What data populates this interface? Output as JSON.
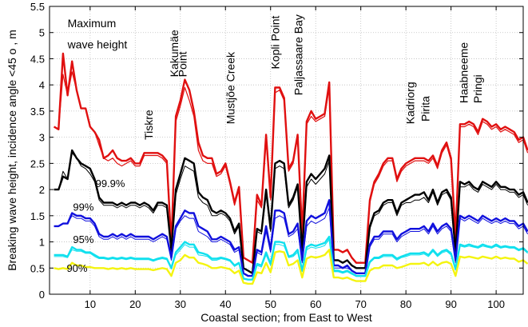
{
  "chart_data": {
    "type": "line",
    "title": "",
    "xlabel": "Coastal section; from East to West",
    "ylabel": "Breaking wave height, incidence angle <45 o , m",
    "xlim": [
      1,
      106
    ],
    "ylim": [
      0,
      5.5
    ],
    "xticks": [
      10,
      20,
      30,
      40,
      50,
      60,
      70,
      80,
      90,
      100
    ],
    "yticks": [
      0,
      0.5,
      1,
      1.5,
      2,
      2.5,
      3,
      3.5,
      4,
      4.5,
      5,
      5.5
    ],
    "ytick_labels": [
      "0",
      "0.5",
      "1",
      "1.5",
      "2",
      "2.5",
      "3",
      "3.5",
      "4",
      "4.5",
      "5",
      "5.5"
    ],
    "grid": true,
    "annotations": [
      {
        "text": "Maximum",
        "x": 5,
        "y": 5.1,
        "rotate": false
      },
      {
        "text": "wave height",
        "x": 5,
        "y": 4.7,
        "rotate": false
      },
      {
        "text": "Tiskre",
        "x": 23.8,
        "y": 2.95,
        "rotate": true
      },
      {
        "text": "Kakumäe",
        "x": 29.5,
        "y": 4.15,
        "rotate": true
      },
      {
        "text": "Point",
        "x": 31.4,
        "y": 4.15,
        "rotate": true
      },
      {
        "text": "Mustjõe Creek",
        "x": 42,
        "y": 3.25,
        "rotate": true
      },
      {
        "text": "Kopli Point",
        "x": 51.9,
        "y": 4.3,
        "rotate": true
      },
      {
        "text": "Paljassaare Bay",
        "x": 57,
        "y": 3.8,
        "rotate": true
      },
      {
        "text": "Kadriorg",
        "x": 81.8,
        "y": 3.25,
        "rotate": true
      },
      {
        "text": "Pirita",
        "x": 85.2,
        "y": 3.3,
        "rotate": true
      },
      {
        "text": "Haabneeme",
        "x": 93.7,
        "y": 3.65,
        "rotate": true
      },
      {
        "text": "Pringi",
        "x": 96.8,
        "y": 3.65,
        "rotate": true
      }
    ],
    "series_labels": [
      {
        "text": "99.9%",
        "x": 11.2,
        "y": 2.05
      },
      {
        "text": "99%",
        "x": 6.2,
        "y": 1.6
      },
      {
        "text": "95%",
        "x": 6.2,
        "y": 0.98
      },
      {
        "text": "90%",
        "x": 4.8,
        "y": 0.43
      }
    ],
    "series": [
      {
        "color": "#e01010",
        "width": 2.4,
        "values": [
          3.2,
          3.15,
          4.6,
          3.8,
          4.45,
          3.9,
          3.55,
          3.55,
          3.2,
          3.1,
          2.95,
          2.6,
          2.65,
          2.75,
          2.6,
          2.55,
          2.55,
          2.6,
          2.5,
          2.5,
          2.7,
          2.7,
          2.7,
          2.7,
          2.65,
          2.55,
          0.95,
          3.4,
          3.7,
          4.1,
          3.9,
          3.5,
          2.9,
          2.65,
          2.6,
          2.6,
          2.3,
          2.35,
          2.5,
          2.15,
          1.75,
          2.05,
          0.7,
          0.65,
          0.6,
          1.9,
          1.7,
          3.05,
          1.85,
          3.95,
          3.95,
          3.75,
          2.4,
          2.55,
          3.05,
          1.15,
          3.3,
          3.5,
          3.35,
          3.4,
          3.45,
          4.05,
          0.85,
          0.85,
          0.8,
          0.85,
          0.7,
          0.6,
          0.6,
          0.6,
          1.8,
          2.15,
          2.3,
          2.5,
          2.6,
          2.6,
          2.2,
          2.4,
          2.5,
          2.55,
          2.6,
          2.6,
          2.6,
          2.55,
          2.65,
          2.45,
          2.75,
          2.9,
          2.6,
          1.1,
          3.25,
          3.25,
          3.3,
          3.25,
          3.1,
          3.35,
          3.3,
          3.2,
          3.25,
          3.15,
          3.2,
          3.15,
          3.1,
          2.95,
          3.0,
          2.75
        ]
      },
      {
        "color": "#e01010",
        "width": 1.2,
        "values": [
          3.2,
          3.15,
          4.2,
          3.8,
          4.25,
          3.9,
          3.55,
          3.55,
          3.2,
          3.1,
          2.85,
          2.6,
          2.55,
          2.6,
          2.5,
          2.45,
          2.5,
          2.55,
          2.45,
          2.45,
          2.65,
          2.65,
          2.65,
          2.65,
          2.6,
          2.5,
          0.95,
          3.3,
          3.6,
          3.95,
          3.7,
          3.4,
          2.75,
          2.55,
          2.5,
          2.5,
          2.25,
          2.3,
          2.45,
          2.1,
          1.7,
          2.0,
          0.7,
          0.65,
          0.6,
          1.8,
          1.65,
          2.95,
          1.8,
          3.85,
          3.9,
          3.7,
          2.35,
          2.5,
          3.0,
          1.1,
          3.25,
          3.4,
          3.3,
          3.35,
          3.4,
          3.95,
          0.85,
          0.85,
          0.8,
          0.85,
          0.7,
          0.6,
          0.6,
          0.6,
          1.75,
          2.1,
          2.25,
          2.45,
          2.55,
          2.55,
          2.15,
          2.35,
          2.45,
          2.5,
          2.55,
          2.55,
          2.55,
          2.5,
          2.6,
          2.4,
          2.7,
          2.85,
          2.55,
          1.05,
          3.2,
          3.2,
          3.25,
          3.2,
          3.05,
          3.3,
          3.25,
          3.15,
          3.2,
          3.1,
          3.15,
          3.1,
          3.05,
          2.9,
          2.95,
          2.7
        ]
      },
      {
        "color": "#000000",
        "width": 2.4,
        "values": [
          2.0,
          2.0,
          2.25,
          2.2,
          2.75,
          2.6,
          2.5,
          2.45,
          2.4,
          2.2,
          1.85,
          1.75,
          1.75,
          1.75,
          1.7,
          1.75,
          1.7,
          1.75,
          1.75,
          1.7,
          1.75,
          1.7,
          1.6,
          1.75,
          1.75,
          1.7,
          0.85,
          2.0,
          2.3,
          2.6,
          2.55,
          2.5,
          1.95,
          1.85,
          1.8,
          1.6,
          1.55,
          1.6,
          1.55,
          1.45,
          1.2,
          1.35,
          0.5,
          0.45,
          0.4,
          1.25,
          1.2,
          2.0,
          1.25,
          2.5,
          2.55,
          2.5,
          1.7,
          1.85,
          2.1,
          0.85,
          2.15,
          2.3,
          2.2,
          2.3,
          2.4,
          2.65,
          0.65,
          0.65,
          0.6,
          0.65,
          0.55,
          0.5,
          0.5,
          0.5,
          1.3,
          1.55,
          1.6,
          1.75,
          1.8,
          1.8,
          1.55,
          1.75,
          1.8,
          1.85,
          1.9,
          1.9,
          1.95,
          1.8,
          2.0,
          1.75,
          1.95,
          2.0,
          1.85,
          0.8,
          2.15,
          2.1,
          2.15,
          2.05,
          2.0,
          2.15,
          2.1,
          2.05,
          2.15,
          2.05,
          2.05,
          2.0,
          2.0,
          1.9,
          1.95,
          1.75
        ]
      },
      {
        "color": "#000000",
        "width": 1.0,
        "values": [
          2.0,
          2.0,
          2.35,
          2.2,
          2.7,
          2.6,
          2.45,
          2.4,
          2.3,
          2.15,
          1.8,
          1.7,
          1.7,
          1.7,
          1.65,
          1.7,
          1.65,
          1.7,
          1.7,
          1.65,
          1.7,
          1.65,
          1.55,
          1.7,
          1.7,
          1.65,
          0.8,
          1.9,
          2.2,
          2.45,
          2.4,
          2.35,
          1.85,
          1.75,
          1.7,
          1.5,
          1.5,
          1.55,
          1.5,
          1.4,
          1.15,
          1.3,
          0.5,
          0.45,
          0.4,
          1.2,
          1.15,
          1.9,
          1.2,
          2.4,
          2.45,
          2.4,
          1.65,
          1.8,
          2.05,
          0.8,
          2.05,
          2.2,
          2.1,
          2.2,
          2.3,
          2.55,
          0.65,
          0.65,
          0.6,
          0.65,
          0.55,
          0.5,
          0.5,
          0.5,
          1.25,
          1.5,
          1.55,
          1.7,
          1.75,
          1.75,
          1.5,
          1.7,
          1.75,
          1.75,
          1.8,
          1.8,
          1.85,
          1.75,
          1.95,
          1.7,
          1.9,
          1.95,
          1.8,
          0.75,
          2.05,
          2.05,
          2.1,
          2.0,
          1.95,
          2.1,
          2.05,
          2.0,
          2.1,
          2.0,
          2.0,
          1.95,
          1.95,
          1.85,
          1.9,
          1.7
        ]
      },
      {
        "color": "#1010dd",
        "width": 2.4,
        "values": [
          1.3,
          1.3,
          1.35,
          1.35,
          1.55,
          1.5,
          1.5,
          1.45,
          1.45,
          1.35,
          1.15,
          1.1,
          1.1,
          1.15,
          1.1,
          1.15,
          1.1,
          1.15,
          1.1,
          1.1,
          1.1,
          1.1,
          1.05,
          1.1,
          1.15,
          1.1,
          0.7,
          1.3,
          1.45,
          1.6,
          1.55,
          1.55,
          1.3,
          1.25,
          1.2,
          1.05,
          1.05,
          1.1,
          1.05,
          1.0,
          0.85,
          0.9,
          0.4,
          0.35,
          0.35,
          0.85,
          0.8,
          1.3,
          0.85,
          1.6,
          1.6,
          1.55,
          1.15,
          1.2,
          1.35,
          0.65,
          1.4,
          1.5,
          1.45,
          1.5,
          1.55,
          1.8,
          0.55,
          0.55,
          0.5,
          0.55,
          0.45,
          0.4,
          0.4,
          0.4,
          0.95,
          1.1,
          1.1,
          1.2,
          1.2,
          1.2,
          1.05,
          1.15,
          1.2,
          1.25,
          1.25,
          1.25,
          1.3,
          1.2,
          1.35,
          1.2,
          1.3,
          1.35,
          1.25,
          0.65,
          1.5,
          1.45,
          1.5,
          1.45,
          1.4,
          1.5,
          1.45,
          1.4,
          1.45,
          1.4,
          1.45,
          1.4,
          1.4,
          1.3,
          1.35,
          1.2
        ]
      },
      {
        "color": "#1010dd",
        "width": 1.0,
        "values": [
          1.3,
          1.3,
          1.35,
          1.35,
          1.5,
          1.45,
          1.45,
          1.4,
          1.4,
          1.3,
          1.1,
          1.05,
          1.05,
          1.1,
          1.05,
          1.1,
          1.05,
          1.1,
          1.05,
          1.05,
          1.05,
          1.05,
          1.0,
          1.05,
          1.1,
          1.05,
          0.65,
          1.25,
          1.4,
          1.5,
          1.45,
          1.45,
          1.2,
          1.15,
          1.1,
          1.0,
          1.0,
          1.05,
          1.0,
          0.95,
          0.8,
          0.85,
          0.4,
          0.35,
          0.35,
          0.8,
          0.75,
          1.2,
          0.8,
          1.45,
          1.5,
          1.45,
          1.1,
          1.15,
          1.25,
          0.6,
          1.3,
          1.4,
          1.35,
          1.4,
          1.45,
          1.65,
          0.5,
          0.5,
          0.5,
          0.5,
          0.45,
          0.4,
          0.4,
          0.4,
          0.9,
          1.05,
          1.05,
          1.15,
          1.15,
          1.15,
          1.0,
          1.1,
          1.15,
          1.2,
          1.2,
          1.2,
          1.25,
          1.15,
          1.3,
          1.15,
          1.25,
          1.3,
          1.2,
          0.6,
          1.45,
          1.4,
          1.45,
          1.4,
          1.35,
          1.45,
          1.4,
          1.35,
          1.4,
          1.35,
          1.4,
          1.35,
          1.35,
          1.25,
          1.3,
          1.15
        ]
      },
      {
        "color": "#10e0ee",
        "width": 2.4,
        "values": [
          0.75,
          0.75,
          0.75,
          0.72,
          0.9,
          0.85,
          0.85,
          0.8,
          0.8,
          0.75,
          0.7,
          0.7,
          0.68,
          0.7,
          0.68,
          0.7,
          0.68,
          0.7,
          0.68,
          0.68,
          0.68,
          0.68,
          0.65,
          0.68,
          0.7,
          0.68,
          0.5,
          0.8,
          0.9,
          1.0,
          0.95,
          0.95,
          0.8,
          0.78,
          0.75,
          0.68,
          0.68,
          0.7,
          0.68,
          0.65,
          0.55,
          0.6,
          0.3,
          0.28,
          0.28,
          0.58,
          0.55,
          0.8,
          0.58,
          1.0,
          1.0,
          0.98,
          0.72,
          0.75,
          0.85,
          0.45,
          0.9,
          0.95,
          0.92,
          0.95,
          0.98,
          1.1,
          0.45,
          0.45,
          0.42,
          0.45,
          0.4,
          0.35,
          0.35,
          0.35,
          0.62,
          0.7,
          0.7,
          0.75,
          0.75,
          0.75,
          0.68,
          0.72,
          0.75,
          0.78,
          0.78,
          0.78,
          0.8,
          0.75,
          0.85,
          0.75,
          0.82,
          0.85,
          0.78,
          0.48,
          0.95,
          0.92,
          0.95,
          0.92,
          0.9,
          0.95,
          0.92,
          0.9,
          0.95,
          0.9,
          0.92,
          0.9,
          0.9,
          0.85,
          0.88,
          0.8
        ]
      },
      {
        "color": "#10e0ee",
        "width": 1.0,
        "values": [
          0.72,
          0.72,
          0.72,
          0.7,
          0.85,
          0.82,
          0.82,
          0.78,
          0.78,
          0.72,
          0.68,
          0.68,
          0.66,
          0.68,
          0.66,
          0.68,
          0.66,
          0.68,
          0.66,
          0.66,
          0.66,
          0.66,
          0.63,
          0.66,
          0.68,
          0.66,
          0.48,
          0.75,
          0.85,
          0.95,
          0.9,
          0.9,
          0.75,
          0.74,
          0.72,
          0.65,
          0.65,
          0.68,
          0.66,
          0.63,
          0.53,
          0.58,
          0.3,
          0.28,
          0.28,
          0.55,
          0.52,
          0.75,
          0.55,
          0.95,
          0.95,
          0.92,
          0.7,
          0.72,
          0.8,
          0.43,
          0.85,
          0.9,
          0.88,
          0.9,
          0.93,
          1.05,
          0.43,
          0.43,
          0.4,
          0.43,
          0.38,
          0.34,
          0.34,
          0.34,
          0.6,
          0.68,
          0.68,
          0.72,
          0.72,
          0.72,
          0.65,
          0.7,
          0.72,
          0.75,
          0.75,
          0.75,
          0.77,
          0.72,
          0.82,
          0.72,
          0.79,
          0.82,
          0.75,
          0.46,
          0.92,
          0.9,
          0.92,
          0.9,
          0.88,
          0.92,
          0.9,
          0.88,
          0.92,
          0.88,
          0.9,
          0.88,
          0.88,
          0.83,
          0.86,
          0.78
        ]
      },
      {
        "color": "#f4f410",
        "width": 2.4,
        "values": [
          0.5,
          0.48,
          0.5,
          0.48,
          0.6,
          0.55,
          0.55,
          0.52,
          0.52,
          0.5,
          0.5,
          0.5,
          0.48,
          0.5,
          0.48,
          0.5,
          0.48,
          0.5,
          0.48,
          0.48,
          0.48,
          0.48,
          0.46,
          0.48,
          0.5,
          0.48,
          0.35,
          0.6,
          0.65,
          0.75,
          0.7,
          0.7,
          0.6,
          0.58,
          0.55,
          0.5,
          0.5,
          0.52,
          0.5,
          0.48,
          0.4,
          0.45,
          0.22,
          0.2,
          0.2,
          0.42,
          0.4,
          0.6,
          0.42,
          0.8,
          0.82,
          0.8,
          0.55,
          0.58,
          0.65,
          0.32,
          0.68,
          0.72,
          0.7,
          0.72,
          0.75,
          0.85,
          0.32,
          0.32,
          0.3,
          0.32,
          0.28,
          0.25,
          0.25,
          0.25,
          0.45,
          0.5,
          0.5,
          0.55,
          0.55,
          0.55,
          0.5,
          0.52,
          0.55,
          0.58,
          0.58,
          0.58,
          0.6,
          0.55,
          0.62,
          0.55,
          0.6,
          0.62,
          0.58,
          0.35,
          0.72,
          0.7,
          0.72,
          0.7,
          0.68,
          0.72,
          0.7,
          0.68,
          0.72,
          0.68,
          0.7,
          0.68,
          0.68,
          0.62,
          0.65,
          0.58
        ]
      }
    ]
  }
}
